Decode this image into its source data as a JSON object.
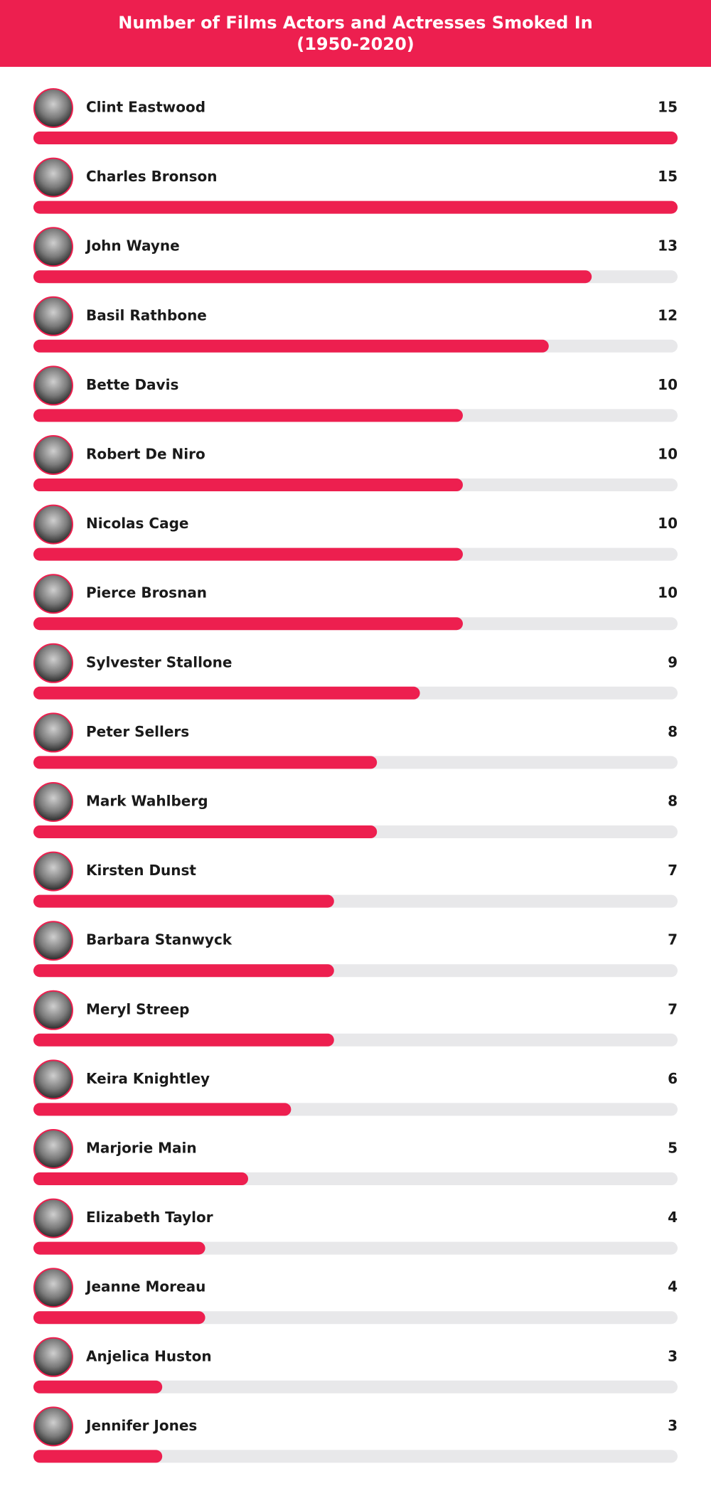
{
  "chart_data": {
    "type": "bar",
    "title": "Number of Films Actors and Actresses Smoked In (1950-2020)",
    "categories": [
      "Clint Eastwood",
      "Charles Bronson",
      "John Wayne",
      "Basil Rathbone",
      "Bette Davis",
      "Robert De Niro",
      "Nicolas Cage",
      "Pierce Brosnan",
      "Sylvester Stallone",
      "Peter Sellers",
      "Mark Wahlberg",
      "Kirsten Dunst",
      "Barbara Stanwyck",
      "Meryl Streep",
      "Keira Knightley",
      "Marjorie Main",
      "Elizabeth Taylor",
      "Jeanne Moreau",
      "Anjelica Huston",
      "Jennifer Jones"
    ],
    "values": [
      15,
      15,
      13,
      12,
      10,
      10,
      10,
      10,
      9,
      8,
      8,
      7,
      7,
      7,
      6,
      5,
      4,
      4,
      3,
      3
    ],
    "color": "#ed1f4f",
    "track_color": "#e8e8ea",
    "xlim": [
      0,
      15
    ]
  }
}
